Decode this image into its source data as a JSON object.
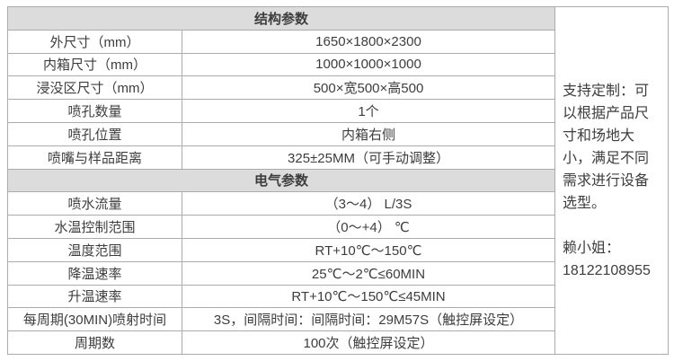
{
  "colors": {
    "header_bg": "#dcdcdc",
    "border": "#ababab",
    "text": "#3d3d3d"
  },
  "spec_table": {
    "sections": [
      {
        "title": "结构参数",
        "rows": [
          {
            "label": "外尺寸（mm）",
            "value": "1650×1800×2300"
          },
          {
            "label": "内箱尺寸（mm）",
            "value": "1000×1000×1000"
          },
          {
            "label": "浸没区尺寸（mm）",
            "value": "500×宽500×高500"
          },
          {
            "label": "喷孔数量",
            "value": "1个"
          },
          {
            "label": "喷孔位置",
            "value": "内箱右侧"
          },
          {
            "label": "喷嘴与样品距离",
            "value": "325±25MM（可手动调整）"
          }
        ]
      },
      {
        "title": "电气参数",
        "rows": [
          {
            "label": "喷水流量",
            "value": "（3～4） L/3S"
          },
          {
            "label": "水温控制范围",
            "value": "（0～+4） ℃"
          },
          {
            "label": "温度范围",
            "value": "RT+10℃～150℃"
          },
          {
            "label": "降温速率",
            "value": "25℃～2℃≤60MIN"
          },
          {
            "label": "升温速率",
            "value": "RT+10℃～150℃≤45MIN"
          },
          {
            "label": "每周期(30MIN)喷射时间",
            "value": "3S，间隔时间：间隔时间：29M57S（触控屏设定）"
          },
          {
            "label": "周期数",
            "value": "100次（触控屏设定）"
          }
        ]
      }
    ]
  },
  "sidebar": {
    "note": "支持定制：可以根据产品尺寸和场地大小，满足不同需求进行设备选型。",
    "contact_name": "赖小姐：",
    "contact_phone": "18122108955"
  }
}
